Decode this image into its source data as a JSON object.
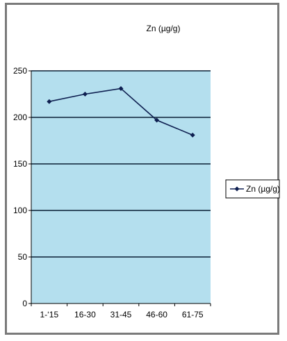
{
  "chart_data": {
    "type": "line",
    "title": "Zn (µg/g)",
    "categories": [
      "1-‘15",
      "16-30",
      "31-45",
      "46-60",
      "61-75"
    ],
    "series": [
      {
        "name": "Zn (µg/g)",
        "values": [
          217,
          225,
          231,
          197,
          181
        ]
      }
    ],
    "ylim": [
      0,
      250
    ],
    "yticks": [
      0,
      50,
      100,
      150,
      200,
      250
    ],
    "grid": true,
    "legend": "right",
    "xlabel": "",
    "ylabel": "",
    "colors": {
      "plot_background": "#b4dfee",
      "gridline": "#0a1f33",
      "series_line": "#0e1f50",
      "frame": "#7a7a7a"
    }
  }
}
